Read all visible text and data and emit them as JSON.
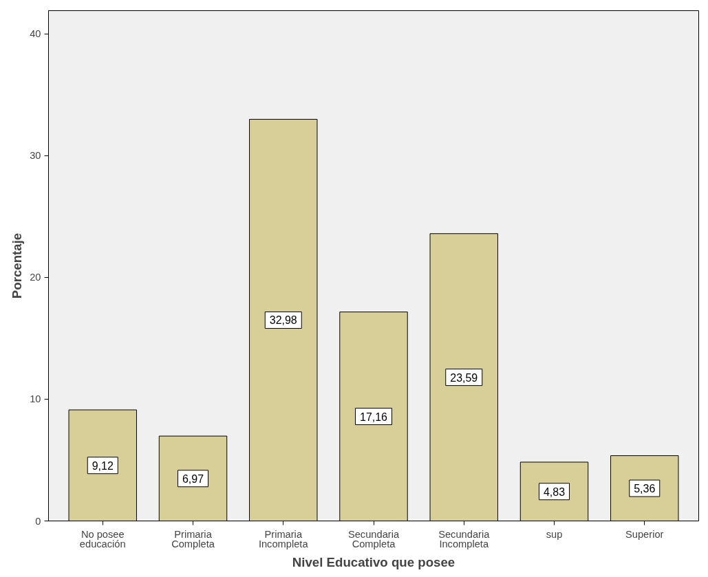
{
  "chart_data": {
    "type": "bar",
    "xlabel": "Nivel Educativo que posee",
    "ylabel": "Porcentaje",
    "categories": [
      "No posee\neducación",
      "Primaria\nCompleta",
      "Primaria\nIncompleta",
      "Secundaria\nCompleta",
      "Secundaria\nIncompleta",
      "sup",
      "Superior"
    ],
    "values": [
      9.12,
      6.97,
      32.98,
      17.16,
      23.59,
      4.83,
      5.36
    ],
    "value_labels": [
      "9,12",
      "6,97",
      "32,98",
      "17,16",
      "23,59",
      "4,83",
      "5,36"
    ],
    "color": "#d8cf98",
    "ylim": [
      0,
      41.9
    ],
    "yticks": [
      0,
      10,
      20,
      30,
      40
    ],
    "grid": false
  }
}
